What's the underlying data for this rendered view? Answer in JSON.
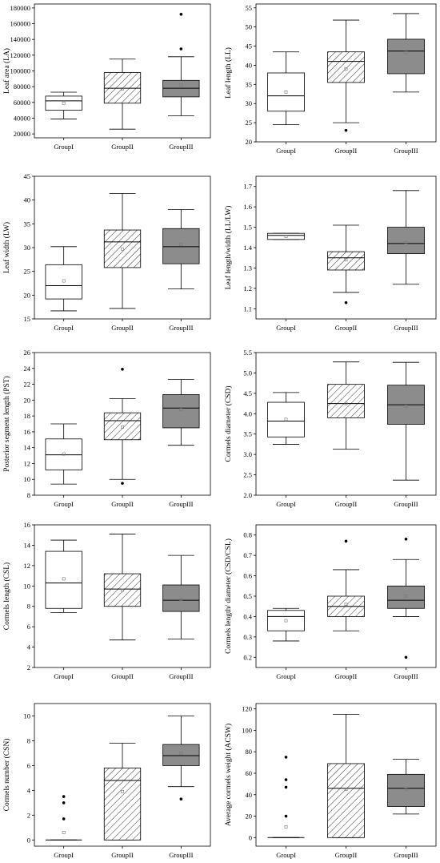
{
  "chart_data": [
    {
      "type": "box",
      "ylabel": "Leaf area (LA)",
      "ylim": [
        15000,
        185000
      ],
      "yticks": [
        20000,
        40000,
        60000,
        80000,
        100000,
        120000,
        140000,
        160000,
        180000
      ],
      "categories": [
        "GroupI",
        "GroupII",
        "GroupIII"
      ],
      "series": [
        {
          "whisker_low": 39000,
          "q1": 50000,
          "median": 62000,
          "q3": 68000,
          "whisker_high": 73000,
          "mean": 59000,
          "outliers": []
        },
        {
          "whisker_low": 26000,
          "q1": 59000,
          "median": 78000,
          "q3": 98000,
          "whisker_high": 115000,
          "mean": 77000,
          "outliers": []
        },
        {
          "whisker_low": 43000,
          "q1": 67000,
          "median": 78000,
          "q3": 88000,
          "whisker_high": 118000,
          "mean": 82000,
          "outliers": [
            128000,
            172000
          ]
        }
      ]
    },
    {
      "type": "box",
      "ylabel": "Leaf length (LL)",
      "ylim": [
        20,
        56
      ],
      "yticks": [
        20,
        25,
        30,
        35,
        40,
        45,
        50,
        55
      ],
      "categories": [
        "GroupI",
        "GroupII",
        "GroupIII"
      ],
      "series": [
        {
          "whisker_low": 24.5,
          "q1": 28.0,
          "median": 32.0,
          "q3": 38.0,
          "whisker_high": 43.5,
          "mean": 33.0,
          "outliers": []
        },
        {
          "whisker_low": 25.0,
          "q1": 35.5,
          "median": 41.0,
          "q3": 43.5,
          "whisker_high": 51.8,
          "mean": 39.0,
          "outliers": [
            23.0
          ]
        },
        {
          "whisker_low": 33.0,
          "q1": 37.8,
          "median": 43.7,
          "q3": 46.8,
          "whisker_high": 53.5,
          "mean": 43.3,
          "outliers": []
        }
      ]
    },
    {
      "type": "box",
      "ylabel": "Leaf width (LW)",
      "ylim": [
        15,
        45
      ],
      "yticks": [
        15,
        20,
        25,
        30,
        35,
        40,
        45
      ],
      "categories": [
        "GroupI",
        "GroupII",
        "GroupIII"
      ],
      "series": [
        {
          "whisker_low": 16.7,
          "q1": 19.2,
          "median": 22.0,
          "q3": 26.4,
          "whisker_high": 30.2,
          "mean": 23.0,
          "outliers": []
        },
        {
          "whisker_low": 17.2,
          "q1": 25.8,
          "median": 31.2,
          "q3": 33.7,
          "whisker_high": 41.4,
          "mean": 29.7,
          "outliers": []
        },
        {
          "whisker_low": 21.3,
          "q1": 26.6,
          "median": 30.2,
          "q3": 34.0,
          "whisker_high": 38.0,
          "mean": 30.7,
          "outliers": []
        }
      ]
    },
    {
      "type": "box",
      "ylabel": "Leaf length/width (LL/LW)",
      "ylim": [
        1.05,
        1.75
      ],
      "yticks": [
        1.1,
        1.2,
        1.3,
        1.4,
        1.5,
        1.6,
        1.7
      ],
      "categories": [
        "GroupI",
        "GroupII",
        "GroupIII"
      ],
      "series": [
        {
          "whisker_low": 1.44,
          "q1": 1.44,
          "median": 1.46,
          "q3": 1.47,
          "whisker_high": 1.47,
          "mean": 1.455,
          "outliers": []
        },
        {
          "whisker_low": 1.18,
          "q1": 1.29,
          "median": 1.35,
          "q3": 1.38,
          "whisker_high": 1.51,
          "mean": 1.34,
          "outliers": [
            1.13
          ]
        },
        {
          "whisker_low": 1.22,
          "q1": 1.37,
          "median": 1.42,
          "q3": 1.5,
          "whisker_high": 1.68,
          "mean": 1.425,
          "outliers": []
        }
      ]
    },
    {
      "type": "box",
      "ylabel": "Posterior segment length (PST)",
      "ylim": [
        8,
        26
      ],
      "yticks": [
        8,
        10,
        12,
        14,
        16,
        18,
        20,
        22,
        24,
        26
      ],
      "categories": [
        "GroupI",
        "GroupII",
        "GroupIII"
      ],
      "series": [
        {
          "whisker_low": 9.4,
          "q1": 11.2,
          "median": 13.1,
          "q3": 15.1,
          "whisker_high": 17.0,
          "mean": 13.2,
          "outliers": []
        },
        {
          "whisker_low": 10.0,
          "q1": 15.0,
          "median": 17.4,
          "q3": 18.4,
          "whisker_high": 20.2,
          "mean": 16.6,
          "outliers": [
            9.5,
            23.9
          ]
        },
        {
          "whisker_low": 14.3,
          "q1": 16.5,
          "median": 19.0,
          "q3": 20.7,
          "whisker_high": 22.6,
          "mean": 18.8,
          "outliers": []
        }
      ]
    },
    {
      "type": "box",
      "ylabel": "Cormels diameter (CSD)",
      "ylim": [
        2.0,
        5.5
      ],
      "yticks": [
        2.0,
        2.5,
        3.0,
        3.5,
        4.0,
        4.5,
        5.0,
        5.5
      ],
      "categories": [
        "GroupI",
        "GroupII",
        "GroupIII"
      ],
      "series": [
        {
          "whisker_low": 3.25,
          "q1": 3.43,
          "median": 3.82,
          "q3": 4.28,
          "whisker_high": 4.52,
          "mean": 3.86,
          "outliers": []
        },
        {
          "whisker_low": 3.13,
          "q1": 3.9,
          "median": 4.25,
          "q3": 4.72,
          "whisker_high": 5.27,
          "mean": 4.25,
          "outliers": []
        },
        {
          "whisker_low": 2.37,
          "q1": 3.74,
          "median": 4.22,
          "q3": 4.7,
          "whisker_high": 5.26,
          "mean": 4.18,
          "outliers": []
        }
      ]
    },
    {
      "type": "box",
      "ylabel": "Cormels length (CSL)",
      "ylim": [
        2,
        16
      ],
      "yticks": [
        2,
        4,
        6,
        8,
        10,
        12,
        14,
        16
      ],
      "categories": [
        "GroupI",
        "GroupII",
        "GroupIII"
      ],
      "series": [
        {
          "whisker_low": 7.4,
          "q1": 7.8,
          "median": 10.3,
          "q3": 13.4,
          "whisker_high": 14.5,
          "mean": 10.7,
          "outliers": []
        },
        {
          "whisker_low": 4.7,
          "q1": 8.0,
          "median": 9.7,
          "q3": 11.2,
          "whisker_high": 15.1,
          "mean": 9.6,
          "outliers": []
        },
        {
          "whisker_low": 4.8,
          "q1": 7.5,
          "median": 8.6,
          "q3": 10.1,
          "whisker_high": 13.0,
          "mean": 8.7,
          "outliers": []
        }
      ]
    },
    {
      "type": "box",
      "ylabel": "Cormels length/ diameter (CSD/CSL)",
      "ylim": [
        0.15,
        0.85
      ],
      "yticks": [
        0.2,
        0.3,
        0.4,
        0.5,
        0.6,
        0.7,
        0.8
      ],
      "categories": [
        "GroupI",
        "GroupII",
        "GroupIII"
      ],
      "series": [
        {
          "whisker_low": 0.28,
          "q1": 0.33,
          "median": 0.4,
          "q3": 0.43,
          "whisker_high": 0.44,
          "mean": 0.38,
          "outliers": []
        },
        {
          "whisker_low": 0.33,
          "q1": 0.4,
          "median": 0.45,
          "q3": 0.5,
          "whisker_high": 0.63,
          "mean": 0.46,
          "outliers": [
            0.77
          ]
        },
        {
          "whisker_low": 0.4,
          "q1": 0.44,
          "median": 0.48,
          "q3": 0.55,
          "whisker_high": 0.68,
          "mean": 0.5,
          "outliers": [
            0.2,
            0.78
          ]
        }
      ]
    },
    {
      "type": "box",
      "ylabel": "Cormels number (CSN)",
      "ylim": [
        -0.5,
        11
      ],
      "yticks": [
        0,
        2,
        4,
        6,
        8,
        10
      ],
      "categories": [
        "GroupI",
        "GroupII",
        "GroupIII"
      ],
      "series": [
        {
          "whisker_low": 0,
          "q1": 0,
          "median": 0,
          "q3": 0,
          "whisker_high": 0,
          "mean": 0.6,
          "outliers": [
            1.7,
            3.0,
            3.5
          ]
        },
        {
          "whisker_low": 0,
          "q1": 0,
          "median": 4.8,
          "q3": 5.8,
          "whisker_high": 7.8,
          "mean": 3.9,
          "outliers": []
        },
        {
          "whisker_low": 4.3,
          "q1": 6.0,
          "median": 6.8,
          "q3": 7.7,
          "whisker_high": 10.0,
          "mean": 7.0,
          "outliers": [
            3.3
          ]
        }
      ]
    },
    {
      "type": "box",
      "ylabel": "Average cormels weight (ACSW)",
      "ylim": [
        -8,
        125
      ],
      "yticks": [
        0,
        20,
        40,
        60,
        80,
        100,
        120
      ],
      "categories": [
        "GroupI",
        "GroupII",
        "GroupIII"
      ],
      "series": [
        {
          "whisker_low": 0,
          "q1": 0,
          "median": 0,
          "q3": 0,
          "whisker_high": 0,
          "mean": 10,
          "outliers": [
            20,
            47,
            54,
            75
          ]
        },
        {
          "whisker_low": 0,
          "q1": 0,
          "median": 46,
          "q3": 69,
          "whisker_high": 115,
          "mean": 45,
          "outliers": []
        },
        {
          "whisker_low": 22,
          "q1": 29,
          "median": 46,
          "q3": 59,
          "whisker_high": 73,
          "mean": 45,
          "outliers": []
        }
      ]
    }
  ]
}
